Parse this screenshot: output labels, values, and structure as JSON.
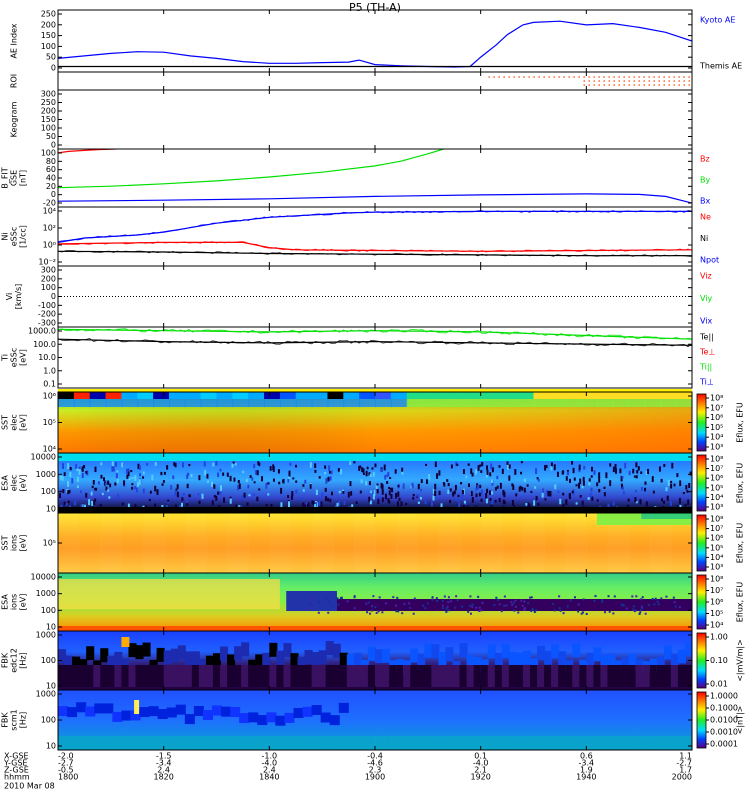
{
  "title": "P5 (TH-A)",
  "date_label": "2010 Mar 08",
  "colors": {
    "red": "#ff0000",
    "green": "#00e000",
    "blue": "#0000ff",
    "black": "#000000"
  },
  "x_axis": {
    "row_labels": [
      "X-GSE",
      "Y-GSE",
      "Z-GSE",
      "hhmm"
    ],
    "ticks": [
      {
        "vals": [
          "-2.0",
          "-2.7",
          "-0.5",
          "1800"
        ]
      },
      {
        "vals": [
          "-1.5",
          "-3.4",
          "2.4",
          "1820"
        ]
      },
      {
        "vals": [
          "-1.0",
          "-4.0",
          "2.4",
          "1840"
        ]
      },
      {
        "vals": [
          "-0.4",
          "-4.6",
          "2.3",
          "1900"
        ]
      },
      {
        "vals": [
          "0.1",
          "-4.0",
          "2.1",
          "1920"
        ]
      },
      {
        "vals": [
          "0.6",
          "-3.4",
          "1.9",
          "1940"
        ]
      },
      {
        "vals": [
          "1.1",
          "-2.7",
          "1.7",
          "2000"
        ]
      }
    ]
  },
  "panels": [
    {
      "id": "ae",
      "ylabel": [
        "AE Index"
      ],
      "yticks": [
        "250",
        "200",
        "150",
        "100",
        "50",
        "0"
      ],
      "legend": [
        {
          "text": "Kyoto AE",
          "color": "#0000ff"
        },
        {
          "text": "Themis AE",
          "color": "#000000"
        }
      ]
    },
    {
      "id": "roi",
      "ylabel": [
        "ROI"
      ],
      "yticks": [],
      "legend": []
    },
    {
      "id": "keogram",
      "ylabel": [
        "Keogram"
      ],
      "yticks": [
        "300",
        "250",
        "200",
        "150",
        "100",
        "50",
        "0"
      ],
      "legend": []
    },
    {
      "id": "bfit",
      "ylabel": [
        "B_FIT",
        "GSE",
        "[nT]"
      ],
      "yticks": [
        "100",
        "80",
        "60",
        "40",
        "20",
        "0",
        "-20"
      ],
      "legend": [
        {
          "text": "Bz",
          "color": "#ff0000"
        },
        {
          "text": "By",
          "color": "#00e000"
        },
        {
          "text": "Bx",
          "color": "#0000ff"
        }
      ]
    },
    {
      "id": "ni",
      "ylabel": [
        "Ni",
        "eSSc",
        "[1/cc]"
      ],
      "yticks": [
        "10⁴",
        "10²",
        "10⁰",
        "10⁻²"
      ],
      "legend": [
        {
          "text": "Ne",
          "color": "#ff0000"
        },
        {
          "text": "Ni",
          "color": "#000000"
        },
        {
          "text": "Npot",
          "color": "#0000ff"
        }
      ]
    },
    {
      "id": "vi",
      "ylabel": [
        "Vi",
        "[km/s]"
      ],
      "yticks": [
        "300",
        "200",
        "100",
        "0",
        "-100",
        "-200",
        "-300"
      ],
      "legend": [
        {
          "text": "Viz",
          "color": "#ff0000"
        },
        {
          "text": "Viy",
          "color": "#00e000"
        },
        {
          "text": "Vix",
          "color": "#0000ff"
        }
      ]
    },
    {
      "id": "ti",
      "ylabel": [
        "Ti",
        "eSSc",
        "[eV]"
      ],
      "yticks": [
        "1000.0",
        "100.0",
        "10.0",
        "1.0",
        "0.1"
      ],
      "legend": [
        {
          "text": "Te||",
          "color": "#000000"
        },
        {
          "text": "Te⊥",
          "color": "#ff0000"
        },
        {
          "text": "Ti||",
          "color": "#00e000"
        },
        {
          "text": "Ti⊥",
          "color": "#0000ff"
        }
      ]
    },
    {
      "id": "sst-e",
      "ylabel": [
        "SST",
        "elec",
        "[eV]"
      ],
      "yticks": [
        "10⁶",
        "10⁵",
        "10⁴"
      ],
      "legend": []
    },
    {
      "id": "esa-e",
      "ylabel": [
        "ESA",
        "elec",
        "[eV]"
      ],
      "yticks": [
        "10000",
        "1000",
        "100",
        "10"
      ],
      "legend": []
    },
    {
      "id": "sst-i",
      "ylabel": [
        "SST",
        "ions",
        "[eV]"
      ],
      "yticks": [
        "10⁵"
      ],
      "legend": []
    },
    {
      "id": "esa-i",
      "ylabel": [
        "ESA",
        "ions",
        "[eV]"
      ],
      "yticks": [
        "10000",
        "1000",
        "100",
        "10"
      ],
      "legend": []
    },
    {
      "id": "fbk-e",
      "ylabel": [
        "FBK",
        "edc12",
        "[Hz]"
      ],
      "yticks": [
        "1000",
        "100",
        "10"
      ],
      "legend": []
    },
    {
      "id": "fbk-b",
      "ylabel": [
        "FBK",
        "scm1",
        "[Hz]"
      ],
      "yticks": [
        "1000",
        "100",
        "10"
      ],
      "legend": []
    }
  ],
  "colorbars": [
    {
      "id": "cb-sst-e",
      "label": "Eflux, EFU",
      "ticks": [
        "10⁸",
        "10⁷",
        "10⁶",
        "10⁵",
        "10⁴",
        "10³"
      ]
    },
    {
      "id": "cb-esa-e",
      "label": "Eflux, EFU",
      "ticks": [
        "10⁸",
        "10⁷",
        "10⁶",
        "10⁵",
        "10⁴",
        "10³"
      ]
    },
    {
      "id": "cb-sst-i",
      "label": "Eflux, EFU",
      "ticks": [
        "10⁸",
        "10⁷",
        "10⁶",
        "10⁵",
        "10⁴",
        "10³"
      ]
    },
    {
      "id": "cb-esa-i",
      "label": "Eflux, EFU",
      "ticks": [
        "10⁸",
        "10⁷",
        "10⁶",
        "10⁵",
        "10⁴"
      ]
    },
    {
      "id": "cb-fbk-e",
      "label": "<|mV/m|>",
      "ticks": [
        "1.00",
        "0.10",
        "0.01"
      ]
    },
    {
      "id": "cb-fbk-b",
      "label": "<|nT|>",
      "ticks": [
        "1.0000",
        "0.1000",
        "0.0100",
        "0.0010",
        "0.0001"
      ]
    }
  ],
  "chart_data": [
    {
      "type": "line",
      "panel": "ae",
      "ylim": [
        0,
        250
      ],
      "series": [
        {
          "name": "Kyoto AE",
          "color": "#0000ff",
          "x": [
            1800,
            1805,
            1810,
            1815,
            1820,
            1825,
            1830,
            1835,
            1840,
            1845,
            1850,
            1855,
            1857,
            1900,
            1905,
            1910,
            1915,
            1918,
            1920,
            1923,
            1925,
            1928,
            1930,
            1935,
            1940,
            1945,
            1950,
            1955,
            2000
          ],
          "y": [
            55,
            65,
            75,
            82,
            80,
            65,
            55,
            42,
            35,
            35,
            38,
            40,
            48,
            30,
            25,
            22,
            20,
            22,
            60,
            110,
            150,
            190,
            200,
            205,
            190,
            195,
            180,
            160,
            125
          ]
        },
        {
          "name": "Themis AE",
          "color": "#000000",
          "x": [
            1800,
            1830,
            1900,
            1930,
            2000
          ],
          "y": [
            22,
            22,
            22,
            22,
            22
          ]
        }
      ]
    },
    {
      "type": "line",
      "panel": "bfit",
      "ylim": [
        -20,
        100
      ],
      "series": [
        {
          "name": "Bz",
          "color": "#ff0000",
          "x": [
            1800,
            1802,
            1805,
            1808,
            1811
          ],
          "y": [
            92,
            95,
            97,
            99,
            100
          ]
        },
        {
          "name": "By",
          "color": "#00e000",
          "x": [
            1800,
            1810,
            1820,
            1830,
            1840,
            1850,
            1900,
            1905,
            1910,
            1913
          ],
          "y": [
            20,
            23,
            28,
            34,
            42,
            52,
            65,
            75,
            90,
            100
          ]
        },
        {
          "name": "Bx",
          "color": "#0000ff",
          "x": [
            1800,
            1820,
            1840,
            1900,
            1920,
            1940,
            1950,
            1955,
            2000
          ],
          "y": [
            -8,
            -6,
            -3,
            2,
            5,
            7,
            6,
            2,
            -12
          ]
        }
      ]
    },
    {
      "type": "line",
      "panel": "ni",
      "log": true,
      "ylim": [
        -3,
        5
      ],
      "yunit": "log10 1/cc",
      "series": [
        {
          "name": "Npot",
          "color": "#0000ff",
          "x": [
            1800,
            1805,
            1810,
            1815,
            1820,
            1825,
            1830,
            1835,
            1840,
            1845,
            1850,
            1855,
            1900,
            1920,
            1940,
            2000
          ],
          "y": [
            0.2,
            0.8,
            1.0,
            1.2,
            1.6,
            2.2,
            2.8,
            3.2,
            3.6,
            3.8,
            4.0,
            4.2,
            4.3,
            4.4,
            4.4,
            4.4
          ]
        },
        {
          "name": "Ne",
          "color": "#ff0000",
          "x": [
            1800,
            1820,
            1835,
            1840,
            1845,
            1900,
            1920,
            2000
          ],
          "y": [
            0.0,
            0.2,
            0.2,
            -0.5,
            -0.8,
            -0.9,
            -1.0,
            -0.8
          ]
        },
        {
          "name": "Ni",
          "color": "#000000",
          "x": [
            1800,
            1820,
            1840,
            1900,
            1920,
            1940,
            2000
          ],
          "y": [
            -1.0,
            -1.1,
            -1.3,
            -1.4,
            -1.5,
            -1.6,
            -1.6
          ]
        }
      ]
    },
    {
      "type": "line",
      "panel": "ti",
      "log": true,
      "ylim": [
        -1.5,
        3.5
      ],
      "yunit": "log10 eV",
      "series": [
        {
          "name": "Ti||",
          "color": "#00e000",
          "x": [
            1800,
            1820,
            1840,
            1900,
            1920,
            1940,
            2000
          ],
          "y": [
            3.3,
            3.2,
            3.1,
            3.2,
            3.1,
            2.8,
            2.5
          ]
        },
        {
          "name": "Te||",
          "color": "#000000",
          "x": [
            1800,
            1820,
            1840,
            1900,
            1920,
            1940,
            2000
          ],
          "y": [
            2.5,
            2.3,
            2.2,
            2.3,
            2.2,
            2.1,
            2.0
          ]
        }
      ]
    }
  ]
}
